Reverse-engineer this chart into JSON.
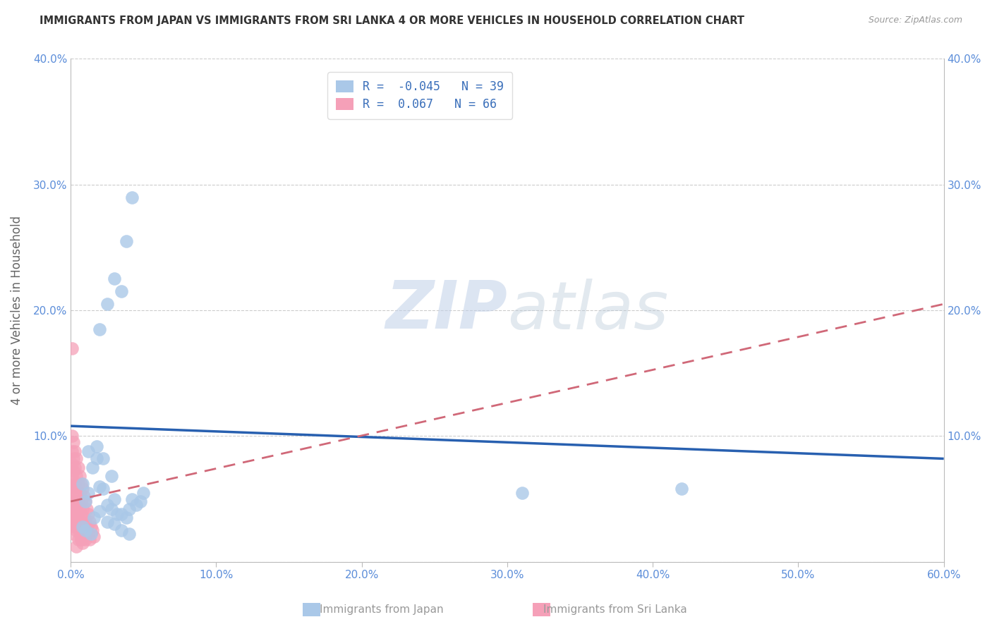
{
  "title": "IMMIGRANTS FROM JAPAN VS IMMIGRANTS FROM SRI LANKA 4 OR MORE VEHICLES IN HOUSEHOLD CORRELATION CHART",
  "source": "Source: ZipAtlas.com",
  "ylabel": "4 or more Vehicles in Household",
  "xlim": [
    0.0,
    0.6
  ],
  "ylim": [
    0.0,
    0.4
  ],
  "xticks": [
    0.0,
    0.1,
    0.2,
    0.3,
    0.4,
    0.5,
    0.6
  ],
  "yticks": [
    0.0,
    0.1,
    0.2,
    0.3,
    0.4
  ],
  "xticklabels": [
    "0.0%",
    "10.0%",
    "20.0%",
    "30.0%",
    "40.0%",
    "50.0%",
    "60.0%"
  ],
  "yticklabels_left": [
    "",
    "10.0%",
    "20.0%",
    "30.0%",
    "40.0%"
  ],
  "yticklabels_right": [
    "",
    "10.0%",
    "20.0%",
    "30.0%",
    "40.0%"
  ],
  "japan_color": "#aac8e8",
  "srilanka_color": "#f5a0b8",
  "japan_line_color": "#2860b0",
  "srilanka_line_color": "#d06878",
  "japan_R": -0.045,
  "japan_N": 39,
  "srilanka_R": 0.067,
  "srilanka_N": 66,
  "legend_label_japan": "Immigrants from Japan",
  "legend_label_srilanka": "Immigrants from Sri Lanka",
  "watermark_zip": "ZIP",
  "watermark_atlas": "atlas",
  "japan_line_y0": 0.108,
  "japan_line_y1": 0.082,
  "srilanka_line_y0": 0.048,
  "srilanka_line_y1": 0.205,
  "japan_x": [
    0.008,
    0.01,
    0.012,
    0.015,
    0.018,
    0.02,
    0.022,
    0.025,
    0.028,
    0.03,
    0.032,
    0.035,
    0.038,
    0.04,
    0.042,
    0.045,
    0.048,
    0.05,
    0.012,
    0.018,
    0.022,
    0.028,
    0.035,
    0.038,
    0.042,
    0.02,
    0.025,
    0.03,
    0.31,
    0.42,
    0.008,
    0.01,
    0.014,
    0.016,
    0.02,
    0.025,
    0.03,
    0.035,
    0.04
  ],
  "japan_y": [
    0.062,
    0.048,
    0.055,
    0.075,
    0.082,
    0.06,
    0.058,
    0.045,
    0.042,
    0.05,
    0.038,
    0.038,
    0.035,
    0.042,
    0.05,
    0.045,
    0.048,
    0.055,
    0.088,
    0.092,
    0.082,
    0.068,
    0.215,
    0.255,
    0.29,
    0.185,
    0.205,
    0.225,
    0.055,
    0.058,
    0.028,
    0.025,
    0.022,
    0.035,
    0.04,
    0.032,
    0.03,
    0.025,
    0.022
  ],
  "srilanka_x": [
    0.001,
    0.001,
    0.001,
    0.001,
    0.001,
    0.001,
    0.001,
    0.002,
    0.002,
    0.002,
    0.002,
    0.002,
    0.002,
    0.002,
    0.003,
    0.003,
    0.003,
    0.003,
    0.003,
    0.004,
    0.004,
    0.004,
    0.004,
    0.004,
    0.004,
    0.005,
    0.005,
    0.005,
    0.005,
    0.005,
    0.006,
    0.006,
    0.006,
    0.006,
    0.007,
    0.007,
    0.007,
    0.007,
    0.008,
    0.008,
    0.008,
    0.009,
    0.009,
    0.01,
    0.01,
    0.01,
    0.011,
    0.011,
    0.012,
    0.012,
    0.013,
    0.013,
    0.014,
    0.015,
    0.016,
    0.001,
    0.001,
    0.002,
    0.002,
    0.003,
    0.003,
    0.004,
    0.005,
    0.006,
    0.007,
    0.008
  ],
  "srilanka_y": [
    0.17,
    0.1,
    0.088,
    0.078,
    0.068,
    0.058,
    0.042,
    0.095,
    0.082,
    0.072,
    0.06,
    0.048,
    0.035,
    0.022,
    0.088,
    0.075,
    0.062,
    0.048,
    0.03,
    0.082,
    0.068,
    0.055,
    0.04,
    0.025,
    0.012,
    0.075,
    0.062,
    0.048,
    0.032,
    0.018,
    0.068,
    0.055,
    0.04,
    0.025,
    0.062,
    0.048,
    0.032,
    0.018,
    0.058,
    0.042,
    0.025,
    0.052,
    0.035,
    0.048,
    0.032,
    0.018,
    0.042,
    0.028,
    0.038,
    0.022,
    0.032,
    0.018,
    0.028,
    0.025,
    0.02,
    0.055,
    0.038,
    0.048,
    0.032,
    0.042,
    0.028,
    0.035,
    0.028,
    0.022,
    0.018,
    0.015
  ]
}
